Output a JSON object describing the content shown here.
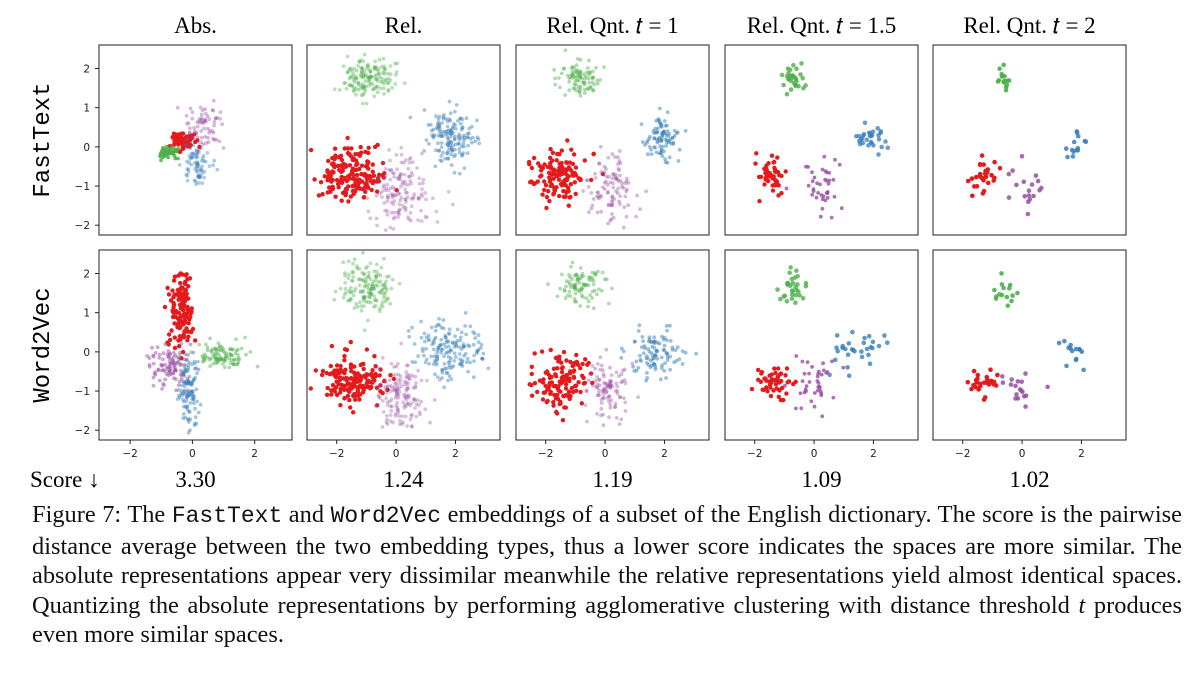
{
  "chart_data": [
    {
      "type": "scatter",
      "row": "FastText",
      "title": "Abs.",
      "score": "3.30",
      "xlim": [
        -3,
        3.2
      ],
      "ylim": [
        -2.25,
        2.6
      ],
      "xticks": [
        "−2",
        "0",
        "2"
      ],
      "yticks": [
        "2",
        "1",
        "0",
        "−1",
        "−2"
      ],
      "series": [
        {
          "name": "red",
          "color": "#e41a1c",
          "center": [
            -0.3,
            0.15
          ],
          "spread": [
            0.17,
            0.1
          ],
          "n": 80,
          "alpha": 1.0
        },
        {
          "name": "green",
          "color": "#4daf4a",
          "center": [
            -0.8,
            -0.15
          ],
          "spread": [
            0.16,
            0.08
          ],
          "n": 50,
          "alpha": 0.85
        },
        {
          "name": "purple",
          "color": "#984ea3",
          "center": [
            0.35,
            0.45
          ],
          "spread": [
            0.28,
            0.28
          ],
          "n": 70,
          "alpha": 0.4
        },
        {
          "name": "blue",
          "color": "#377eb8",
          "center": [
            0.15,
            -0.45
          ],
          "spread": [
            0.22,
            0.25
          ],
          "n": 70,
          "alpha": 0.4
        }
      ]
    },
    {
      "type": "scatter",
      "row": "FastText",
      "title": "Rel.",
      "score": "1.24",
      "xlim": [
        -3,
        3.5
      ],
      "ylim": [
        -2.3,
        2.6
      ],
      "series": [
        {
          "name": "green",
          "color": "#4daf4a",
          "center": [
            -0.95,
            1.75
          ],
          "spread": [
            0.45,
            0.25
          ],
          "n": 150,
          "alpha": 0.4
        },
        {
          "name": "blue",
          "color": "#377eb8",
          "center": [
            1.9,
            0.2
          ],
          "spread": [
            0.45,
            0.32
          ],
          "n": 150,
          "alpha": 0.45
        },
        {
          "name": "red",
          "color": "#e41a1c",
          "center": [
            -1.5,
            -0.75
          ],
          "spread": [
            0.5,
            0.35
          ],
          "n": 170,
          "alpha": 1.0
        },
        {
          "name": "purple",
          "color": "#984ea3",
          "center": [
            0.15,
            -1.1
          ],
          "spread": [
            0.5,
            0.5
          ],
          "n": 150,
          "alpha": 0.35
        }
      ]
    },
    {
      "type": "scatter",
      "row": "FastText",
      "title": "Rel. Qnt. 𝑡 = 1",
      "score": "1.19",
      "xlim": [
        -3,
        3.5
      ],
      "ylim": [
        -2.3,
        2.6
      ],
      "series": [
        {
          "name": "green",
          "color": "#4daf4a",
          "center": [
            -0.85,
            1.75
          ],
          "spread": [
            0.35,
            0.25
          ],
          "n": 90,
          "alpha": 0.45
        },
        {
          "name": "blue",
          "color": "#377eb8",
          "center": [
            1.9,
            0.2
          ],
          "spread": [
            0.3,
            0.3
          ],
          "n": 90,
          "alpha": 0.5
        },
        {
          "name": "red",
          "color": "#e41a1c",
          "center": [
            -1.5,
            -0.75
          ],
          "spread": [
            0.45,
            0.35
          ],
          "n": 130,
          "alpha": 1.0
        },
        {
          "name": "purple",
          "color": "#984ea3",
          "center": [
            0.15,
            -1.0
          ],
          "spread": [
            0.4,
            0.45
          ],
          "n": 100,
          "alpha": 0.4
        }
      ]
    },
    {
      "type": "scatter",
      "row": "FastText",
      "title": "Rel. Qnt. 𝑡 = 1.5",
      "score": "1.09",
      "xlim": [
        -3,
        3.5
      ],
      "ylim": [
        -2.3,
        2.6
      ],
      "series": [
        {
          "name": "green",
          "color": "#4daf4a",
          "center": [
            -0.75,
            1.75
          ],
          "spread": [
            0.2,
            0.2
          ],
          "n": 30,
          "alpha": 0.8
        },
        {
          "name": "blue",
          "color": "#377eb8",
          "center": [
            1.85,
            0.2
          ],
          "spread": [
            0.3,
            0.15
          ],
          "n": 30,
          "alpha": 0.75
        },
        {
          "name": "red",
          "color": "#e41a1c",
          "center": [
            -1.45,
            -0.75
          ],
          "spread": [
            0.25,
            0.25
          ],
          "n": 50,
          "alpha": 1.0
        },
        {
          "name": "purple",
          "color": "#984ea3",
          "center": [
            0.15,
            -1.0
          ],
          "spread": [
            0.45,
            0.45
          ],
          "n": 40,
          "alpha": 0.8
        }
      ]
    },
    {
      "type": "scatter",
      "row": "FastText",
      "title": "Rel. Qnt. 𝑡 = 2",
      "score": "1.02",
      "xlim": [
        -3,
        3.5
      ],
      "ylim": [
        -2.3,
        2.6
      ],
      "series": [
        {
          "name": "green",
          "color": "#4daf4a",
          "center": [
            -0.65,
            1.75
          ],
          "spread": [
            0.15,
            0.18
          ],
          "n": 15,
          "alpha": 0.9
        },
        {
          "name": "blue",
          "color": "#377eb8",
          "center": [
            1.8,
            0.05
          ],
          "spread": [
            0.15,
            0.2
          ],
          "n": 14,
          "alpha": 0.85
        },
        {
          "name": "red",
          "color": "#e41a1c",
          "center": [
            -1.25,
            -0.8
          ],
          "spread": [
            0.22,
            0.25
          ],
          "n": 28,
          "alpha": 1.0
        },
        {
          "name": "purple",
          "color": "#984ea3",
          "center": [
            0.1,
            -1.0
          ],
          "spread": [
            0.35,
            0.35
          ],
          "n": 18,
          "alpha": 0.85
        }
      ]
    },
    {
      "type": "scatter",
      "row": "Word2Vec",
      "title": "",
      "score": "",
      "xlim": [
        -3,
        3.2
      ],
      "ylim": [
        -2.25,
        2.6
      ],
      "series": [
        {
          "name": "red",
          "color": "#e41a1c",
          "center": [
            -0.35,
            1.05
          ],
          "spread": [
            0.2,
            0.5
          ],
          "n": 140,
          "alpha": 1.0
        },
        {
          "name": "green",
          "color": "#4daf4a",
          "center": [
            1.0,
            -0.1
          ],
          "spread": [
            0.45,
            0.15
          ],
          "n": 100,
          "alpha": 0.45
        },
        {
          "name": "purple",
          "color": "#984ea3",
          "center": [
            -0.7,
            -0.4
          ],
          "spread": [
            0.35,
            0.25
          ],
          "n": 100,
          "alpha": 0.5
        },
        {
          "name": "blue",
          "color": "#377eb8",
          "center": [
            -0.1,
            -0.95
          ],
          "spread": [
            0.17,
            0.45
          ],
          "n": 110,
          "alpha": 0.45
        }
      ]
    },
    {
      "type": "scatter",
      "row": "Word2Vec",
      "title": "",
      "score": "",
      "xlim": [
        -3,
        3.5
      ],
      "ylim": [
        -2.3,
        2.6
      ],
      "series": [
        {
          "name": "green",
          "color": "#4daf4a",
          "center": [
            -1.0,
            1.65
          ],
          "spread": [
            0.45,
            0.3
          ],
          "n": 150,
          "alpha": 0.4
        },
        {
          "name": "blue",
          "color": "#377eb8",
          "center": [
            1.8,
            0.0
          ],
          "spread": [
            0.6,
            0.35
          ],
          "n": 160,
          "alpha": 0.45
        },
        {
          "name": "red",
          "color": "#e41a1c",
          "center": [
            -1.4,
            -0.8
          ],
          "spread": [
            0.5,
            0.35
          ],
          "n": 160,
          "alpha": 1.0
        },
        {
          "name": "purple",
          "color": "#984ea3",
          "center": [
            0.1,
            -1.1
          ],
          "spread": [
            0.45,
            0.5
          ],
          "n": 150,
          "alpha": 0.35
        }
      ]
    },
    {
      "type": "scatter",
      "row": "Word2Vec",
      "title": "",
      "score": "",
      "xlim": [
        -3,
        3.5
      ],
      "ylim": [
        -2.3,
        2.6
      ],
      "series": [
        {
          "name": "green",
          "color": "#4daf4a",
          "center": [
            -0.8,
            1.7
          ],
          "spread": [
            0.35,
            0.25
          ],
          "n": 90,
          "alpha": 0.45
        },
        {
          "name": "blue",
          "color": "#377eb8",
          "center": [
            1.75,
            -0.05
          ],
          "spread": [
            0.45,
            0.3
          ],
          "n": 100,
          "alpha": 0.5
        },
        {
          "name": "red",
          "color": "#e41a1c",
          "center": [
            -1.5,
            -0.8
          ],
          "spread": [
            0.45,
            0.35
          ],
          "n": 130,
          "alpha": 1.0
        },
        {
          "name": "purple",
          "color": "#984ea3",
          "center": [
            0.1,
            -1.0
          ],
          "spread": [
            0.4,
            0.45
          ],
          "n": 100,
          "alpha": 0.4
        }
      ]
    },
    {
      "type": "scatter",
      "row": "Word2Vec",
      "title": "",
      "score": "",
      "xlim": [
        -3,
        3.5
      ],
      "ylim": [
        -2.3,
        2.6
      ],
      "series": [
        {
          "name": "green",
          "color": "#4daf4a",
          "center": [
            -0.65,
            1.6
          ],
          "spread": [
            0.25,
            0.25
          ],
          "n": 30,
          "alpha": 0.8
        },
        {
          "name": "blue",
          "color": "#377eb8",
          "center": [
            1.6,
            -0.05
          ],
          "spread": [
            0.5,
            0.25
          ],
          "n": 30,
          "alpha": 0.8
        },
        {
          "name": "red",
          "color": "#e41a1c",
          "center": [
            -1.4,
            -0.8
          ],
          "spread": [
            0.35,
            0.25
          ],
          "n": 50,
          "alpha": 1.0
        },
        {
          "name": "purple",
          "color": "#984ea3",
          "center": [
            0.1,
            -0.85
          ],
          "spread": [
            0.4,
            0.45
          ],
          "n": 40,
          "alpha": 0.8
        }
      ]
    },
    {
      "type": "scatter",
      "row": "Word2Vec",
      "title": "",
      "score": "",
      "xlim": [
        -3,
        3.5
      ],
      "ylim": [
        -2.3,
        2.6
      ],
      "series": [
        {
          "name": "green",
          "color": "#4daf4a",
          "center": [
            -0.6,
            1.6
          ],
          "spread": [
            0.2,
            0.2
          ],
          "n": 15,
          "alpha": 0.9
        },
        {
          "name": "blue",
          "color": "#377eb8",
          "center": [
            1.75,
            0.05
          ],
          "spread": [
            0.35,
            0.2
          ],
          "n": 14,
          "alpha": 0.85
        },
        {
          "name": "red",
          "color": "#e41a1c",
          "center": [
            -1.3,
            -0.85
          ],
          "spread": [
            0.25,
            0.18
          ],
          "n": 28,
          "alpha": 1.0
        },
        {
          "name": "purple",
          "color": "#984ea3",
          "center": [
            0.05,
            -0.85
          ],
          "spread": [
            0.35,
            0.3
          ],
          "n": 18,
          "alpha": 0.85
        }
      ]
    }
  ],
  "labels": {
    "row_labels": [
      "FastText",
      "Word2Vec"
    ],
    "score_label": "Score ↓",
    "xticks": [
      "−2",
      "0",
      "2"
    ],
    "yticks": [
      "2",
      "1",
      "0",
      "−1",
      "−2"
    ]
  },
  "caption": {
    "figure": "Figure 7:",
    "t1": " The ",
    "m1": "FastText",
    "t2": " and ",
    "m2": "Word2Vec",
    "t3": " embeddings of a subset of the English dictionary. The score is the pairwise distance average between the two embedding types, thus a lower score indicates the spaces are more similar.  The absolute representations appear very dissimilar meanwhile the relative representations yield almost identical spaces.  Quantizing the absolute representations by performing agglomerative clustering with distance threshold ",
    "var": "t",
    "t4": " produces even more similar spaces."
  }
}
